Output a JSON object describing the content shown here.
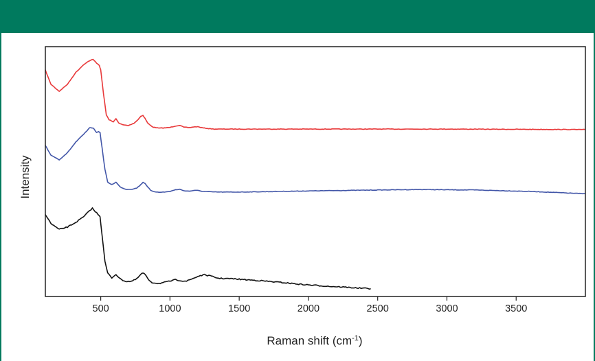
{
  "header": {
    "color": "#007a5e"
  },
  "chart_data": {
    "type": "line",
    "xlabel": "Raman shift (cm",
    "xlabel_sup": "-1",
    "xlabel_end": ")",
    "ylabel": "Intensity",
    "xlim": [
      100,
      4000
    ],
    "x_ticks": [
      500,
      1000,
      1500,
      2000,
      2500,
      3000,
      3500
    ],
    "x_tick_labels": [
      "500",
      "1000",
      "1500",
      "2000",
      "2500",
      "3000",
      "3500"
    ],
    "y_ticks_shown": false,
    "ylim": [
      0,
      100
    ],
    "grid": false,
    "series": [
      {
        "color": "#e8393a",
        "x": [
          100,
          140,
          200,
          260,
          320,
          380,
          420,
          445,
          470,
          490,
          500,
          520,
          540,
          560,
          590,
          610,
          630,
          660,
          700,
          740,
          770,
          790,
          805,
          820,
          840,
          860,
          880,
          920,
          960,
          1000,
          1040,
          1070,
          1100,
          1140,
          1170,
          1200,
          1240,
          1280,
          1320,
          1400,
          1600,
          2000,
          2500,
          3000,
          3500,
          4000
        ],
        "y": [
          93,
          87,
          84,
          87,
          92,
          95.5,
          97,
          97.5,
          96,
          95,
          93,
          83,
          74,
          72,
          71,
          72.5,
          70.5,
          69.8,
          69.5,
          70.5,
          72,
          73.5,
          73.8,
          72.5,
          70.5,
          69.5,
          68.8,
          68.4,
          68.5,
          68.7,
          69.3,
          69.6,
          68.8,
          68.6,
          68.9,
          69.0,
          68.5,
          68.2,
          68.0,
          68.0,
          68.0,
          68.0,
          68.0,
          68.0,
          67.9,
          67.8
        ]
      },
      {
        "color": "#4256a8",
        "x": [
          100,
          140,
          200,
          260,
          320,
          380,
          420,
          445,
          470,
          485,
          495,
          510,
          530,
          550,
          580,
          610,
          640,
          680,
          720,
          760,
          790,
          805,
          820,
          840,
          860,
          880,
          920,
          960,
          1000,
          1040,
          1070,
          1100,
          1140,
          1170,
          1200,
          1240,
          1300,
          1400,
          1600,
          2000,
          2500,
          2800,
          3200,
          3600,
          4000
        ],
        "y": [
          61,
          57,
          55,
          58,
          62.5,
          66,
          68.5,
          68.5,
          66.5,
          67,
          66.5,
          60,
          51,
          45.5,
          44.5,
          45.5,
          43.5,
          42.5,
          42.5,
          43,
          44.5,
          45.5,
          45,
          43.5,
          42,
          41.5,
          41.3,
          41.3,
          41.6,
          42.3,
          42.5,
          41.9,
          41.7,
          42.0,
          42.0,
          41.6,
          41.4,
          41.3,
          41.4,
          41.8,
          42.2,
          42.4,
          42.2,
          41.6,
          40.6
        ]
      },
      {
        "color": "#111111",
        "x": [
          100,
          140,
          200,
          260,
          320,
          380,
          420,
          440,
          460,
          480,
          495,
          510,
          530,
          550,
          580,
          610,
          640,
          680,
          720,
          760,
          790,
          805,
          820,
          840,
          870,
          920,
          980,
          1040,
          1080,
          1120,
          1170,
          1210,
          1250,
          1290,
          1350,
          1450,
          1550,
          1650,
          1750,
          1850,
          1950,
          2050,
          2150,
          2250,
          2350,
          2450
        ],
        "y": [
          32,
          28,
          25.5,
          26.5,
          28.5,
          31,
          33.5,
          34.5,
          33,
          32,
          31,
          23,
          12,
          7,
          5,
          6.5,
          4.5,
          3.5,
          3.5,
          4.5,
          6.5,
          7,
          6.5,
          4.5,
          3,
          2.6,
          3.3,
          4.2,
          3.8,
          3.6,
          4.8,
          5.8,
          6.3,
          5.8,
          4.8,
          4.6,
          4.2,
          3.8,
          3.3,
          2.8,
          2.2,
          1.8,
          1.4,
          1.1,
          0.7,
          0.4
        ]
      }
    ]
  }
}
